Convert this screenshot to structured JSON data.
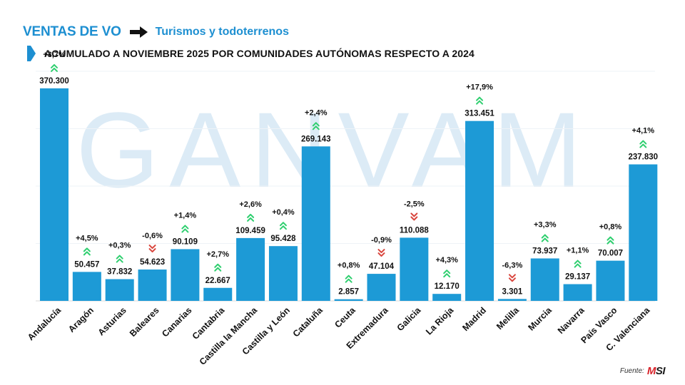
{
  "header": {
    "title": "VENTAS DE VO",
    "subtitle": "Turismos y todoterrenos",
    "chart_title": "ACUMULADO A NOVIEMBRE 2025 POR COMUNIDADES AUTÓNOMAS RESPECTO A 2024"
  },
  "watermark": {
    "text": "GANVAM"
  },
  "footer": {
    "source_label": "Fuente:",
    "logo_text": "MSI"
  },
  "colors": {
    "bar": "#1d9ad6",
    "title": "#1d8fd1",
    "up": "#2fcf6f",
    "down": "#d9463e",
    "watermark": "#dcebf6"
  },
  "chart_data": {
    "type": "bar",
    "title": "ACUMULADO A NOVIEMBRE 2025 POR COMUNIDADES AUTÓNOMAS RESPECTO A 2024",
    "categories": [
      "Andalucía",
      "Aragón",
      "Asturias",
      "Baleares",
      "Canarias",
      "Cantabria",
      "Castilla la Mancha",
      "Castilla y León",
      "Cataluña",
      "Ceuta",
      "Extremadura",
      "Galicia",
      "La Rioja",
      "Madrid",
      "Melilla",
      "Murcia",
      "Navarra",
      "País Vasco",
      "C. Valenciana"
    ],
    "values": [
      370300,
      50457,
      37832,
      54623,
      90109,
      22667,
      109459,
      95428,
      269143,
      2857,
      47104,
      110088,
      12170,
      313451,
      3301,
      73937,
      29137,
      70007,
      237830
    ],
    "value_labels": [
      "370.300",
      "50.457",
      "37.832",
      "54.623",
      "90.109",
      "22.667",
      "109.459",
      "95.428",
      "269.143",
      "2.857",
      "47.104",
      "110.088",
      "12.170",
      "313.451",
      "3.301",
      "73.937",
      "29.137",
      "70.007",
      "237.830"
    ],
    "change_labels": [
      "+3,7%",
      "+4,5%",
      "+0,3%",
      "-0,6%",
      "+1,4%",
      "+2,7%",
      "+2,6%",
      "+0,4%",
      "+2,4%",
      "+0,8%",
      "-0,9%",
      "-2,5%",
      "+4,3%",
      "+17,9%",
      "-6,3%",
      "+3,3%",
      "+1,1%",
      "+0,8%",
      "+4,1%"
    ],
    "change_direction": [
      "up",
      "up",
      "up",
      "down",
      "up",
      "up",
      "up",
      "up",
      "up",
      "up",
      "down",
      "down",
      "up",
      "up",
      "down",
      "up",
      "up",
      "up",
      "up"
    ],
    "xlabel": "",
    "ylabel": "",
    "ylim": [
      0,
      400000
    ],
    "grid": true
  }
}
